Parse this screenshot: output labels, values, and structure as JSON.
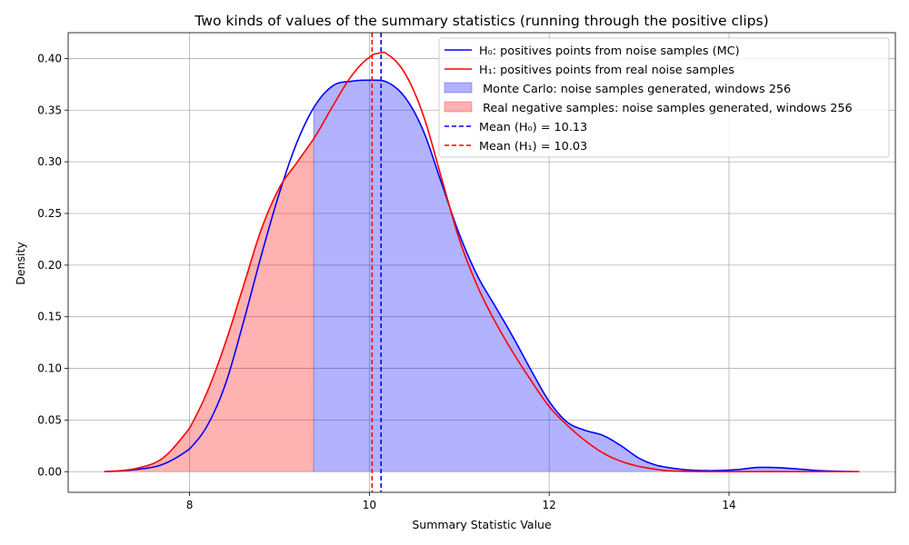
{
  "chart_data": {
    "type": "area",
    "title": "Two kinds of values of the summary statistics (running through the positive clips)",
    "xlabel": "Summary Statistic Value",
    "ylabel": "Density",
    "xlim": [
      6.65,
      15.85
    ],
    "ylim": [
      -0.02,
      0.425
    ],
    "x_ticks": [
      8,
      10,
      12,
      14
    ],
    "y_ticks": [
      0.0,
      0.05,
      0.1,
      0.15,
      0.2,
      0.25,
      0.3,
      0.35,
      0.4
    ],
    "x_tick_labels": [
      "8",
      "10",
      "12",
      "14"
    ],
    "y_tick_labels": [
      "0.00",
      "0.05",
      "0.10",
      "0.15",
      "0.20",
      "0.25",
      "0.30",
      "0.35",
      "0.40"
    ],
    "grid": true,
    "legend_position": "upper-right",
    "fill_split_x": 9.38,
    "series": [
      {
        "name": "H₀: positives points from noise samples (MC)",
        "color": "#0000ff",
        "points": [
          [
            7.05,
            0.0
          ],
          [
            7.4,
            0.002
          ],
          [
            7.7,
            0.007
          ],
          [
            8.0,
            0.022
          ],
          [
            8.2,
            0.045
          ],
          [
            8.4,
            0.085
          ],
          [
            8.6,
            0.145
          ],
          [
            8.8,
            0.21
          ],
          [
            9.0,
            0.27
          ],
          [
            9.2,
            0.32
          ],
          [
            9.4,
            0.355
          ],
          [
            9.6,
            0.374
          ],
          [
            9.8,
            0.378
          ],
          [
            10.0,
            0.379
          ],
          [
            10.2,
            0.377
          ],
          [
            10.4,
            0.362
          ],
          [
            10.6,
            0.33
          ],
          [
            10.8,
            0.28
          ],
          [
            11.0,
            0.23
          ],
          [
            11.2,
            0.19
          ],
          [
            11.4,
            0.16
          ],
          [
            11.6,
            0.13
          ],
          [
            11.8,
            0.098
          ],
          [
            12.0,
            0.068
          ],
          [
            12.2,
            0.048
          ],
          [
            12.4,
            0.04
          ],
          [
            12.6,
            0.035
          ],
          [
            12.8,
            0.025
          ],
          [
            13.0,
            0.013
          ],
          [
            13.2,
            0.006
          ],
          [
            13.5,
            0.002
          ],
          [
            13.8,
            0.001
          ],
          [
            14.1,
            0.002
          ],
          [
            14.3,
            0.004
          ],
          [
            14.5,
            0.004
          ],
          [
            14.7,
            0.003
          ],
          [
            15.0,
            0.001
          ],
          [
            15.45,
            0.0
          ]
        ]
      },
      {
        "name": "H₁: positives points from real noise samples",
        "color": "#ff0000",
        "points": [
          [
            7.05,
            0.0
          ],
          [
            7.4,
            0.003
          ],
          [
            7.7,
            0.013
          ],
          [
            8.0,
            0.042
          ],
          [
            8.2,
            0.078
          ],
          [
            8.4,
            0.125
          ],
          [
            8.6,
            0.18
          ],
          [
            8.8,
            0.235
          ],
          [
            9.0,
            0.275
          ],
          [
            9.2,
            0.3
          ],
          [
            9.4,
            0.325
          ],
          [
            9.6,
            0.355
          ],
          [
            9.8,
            0.383
          ],
          [
            10.0,
            0.401
          ],
          [
            10.1,
            0.405
          ],
          [
            10.2,
            0.404
          ],
          [
            10.4,
            0.385
          ],
          [
            10.6,
            0.345
          ],
          [
            10.8,
            0.285
          ],
          [
            11.0,
            0.225
          ],
          [
            11.2,
            0.18
          ],
          [
            11.4,
            0.145
          ],
          [
            11.6,
            0.115
          ],
          [
            11.8,
            0.088
          ],
          [
            12.0,
            0.063
          ],
          [
            12.2,
            0.045
          ],
          [
            12.4,
            0.03
          ],
          [
            12.6,
            0.018
          ],
          [
            12.8,
            0.01
          ],
          [
            13.0,
            0.005
          ],
          [
            13.3,
            0.001
          ],
          [
            13.8,
            0.0
          ],
          [
            14.5,
            0.0
          ],
          [
            15.45,
            0.0
          ]
        ]
      }
    ],
    "fills": [
      {
        "name": " Monte Carlo: noise samples generated, windows 256",
        "color": "#0000ff",
        "alpha": 0.3
      },
      {
        "name": " Real negative samples: noise samples generated, windows 256",
        "color": "#ff0000",
        "alpha": 0.3
      }
    ],
    "vlines": [
      {
        "name": "Mean (H₀) = 10.13",
        "x": 10.13,
        "color": "#0000ff"
      },
      {
        "name": "Mean (H₁) = 10.03",
        "x": 10.03,
        "color": "#ff0000"
      }
    ]
  }
}
